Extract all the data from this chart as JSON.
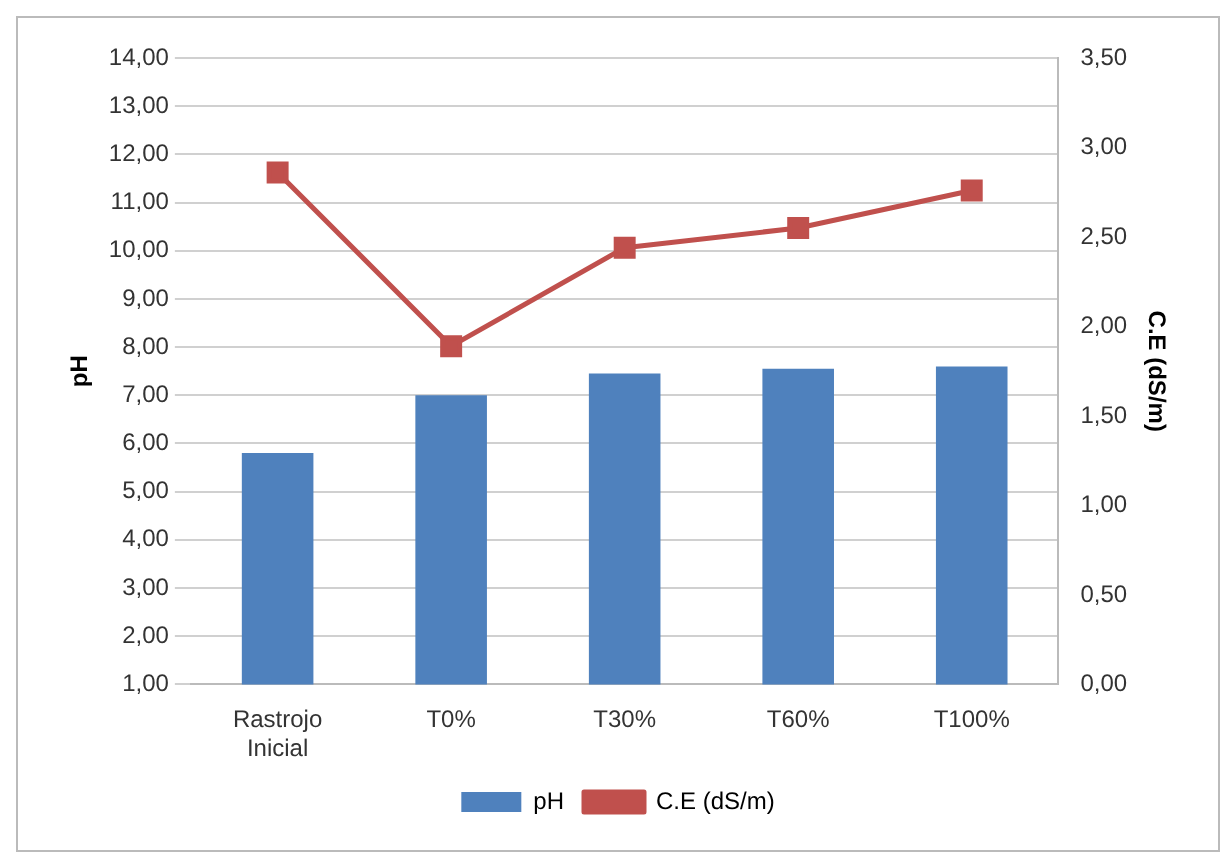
{
  "chart_data": {
    "type": "bar",
    "categories": [
      "Rastrojo Inicial",
      "T0%",
      "T30%",
      "T60%",
      "T100%"
    ],
    "series": [
      {
        "name": "pH",
        "color": "#4f81bd",
        "values": [
          5.8,
          7.0,
          7.45,
          7.55,
          7.6
        ]
      },
      {
        "name": "C.E (dS/m)",
        "type": "line",
        "axis": "y2",
        "color": "#c0504d",
        "marker": "square",
        "values": [
          2.86,
          1.89,
          2.44,
          2.55,
          2.76
        ]
      }
    ],
    "ylabel": "pH",
    "y2label": "C.E (dS/m)",
    "ylim": [
      1,
      14
    ],
    "yticks": [
      {
        "value": 1,
        "label": "1,00"
      },
      {
        "value": 2,
        "label": "2,00"
      },
      {
        "value": 3,
        "label": "3,00"
      },
      {
        "value": 4,
        "label": "4,00"
      },
      {
        "value": 5,
        "label": "5,00"
      },
      {
        "value": 6,
        "label": "6,00"
      },
      {
        "value": 7,
        "label": "7,00"
      },
      {
        "value": 8,
        "label": "8,00"
      },
      {
        "value": 9,
        "label": "9,00"
      },
      {
        "value": 10,
        "label": "10,00"
      },
      {
        "value": 11,
        "label": "11,00"
      },
      {
        "value": 12,
        "label": "12,00"
      },
      {
        "value": 13,
        "label": "13,00"
      },
      {
        "value": 14,
        "label": "14,00"
      }
    ],
    "y2lim": [
      0,
      3.5
    ],
    "y2ticks": [
      {
        "value": 0,
        "label": "0,00"
      },
      {
        "value": 0.5,
        "label": "0,50"
      },
      {
        "value": 1,
        "label": "1,00"
      },
      {
        "value": 1.5,
        "label": "1,50"
      },
      {
        "value": 2,
        "label": "2,00"
      },
      {
        "value": 2.5,
        "label": "2,50"
      },
      {
        "value": 3,
        "label": "3,00"
      },
      {
        "value": 3.5,
        "label": "3,50"
      }
    ],
    "grid": "y",
    "legend": "bottom"
  }
}
